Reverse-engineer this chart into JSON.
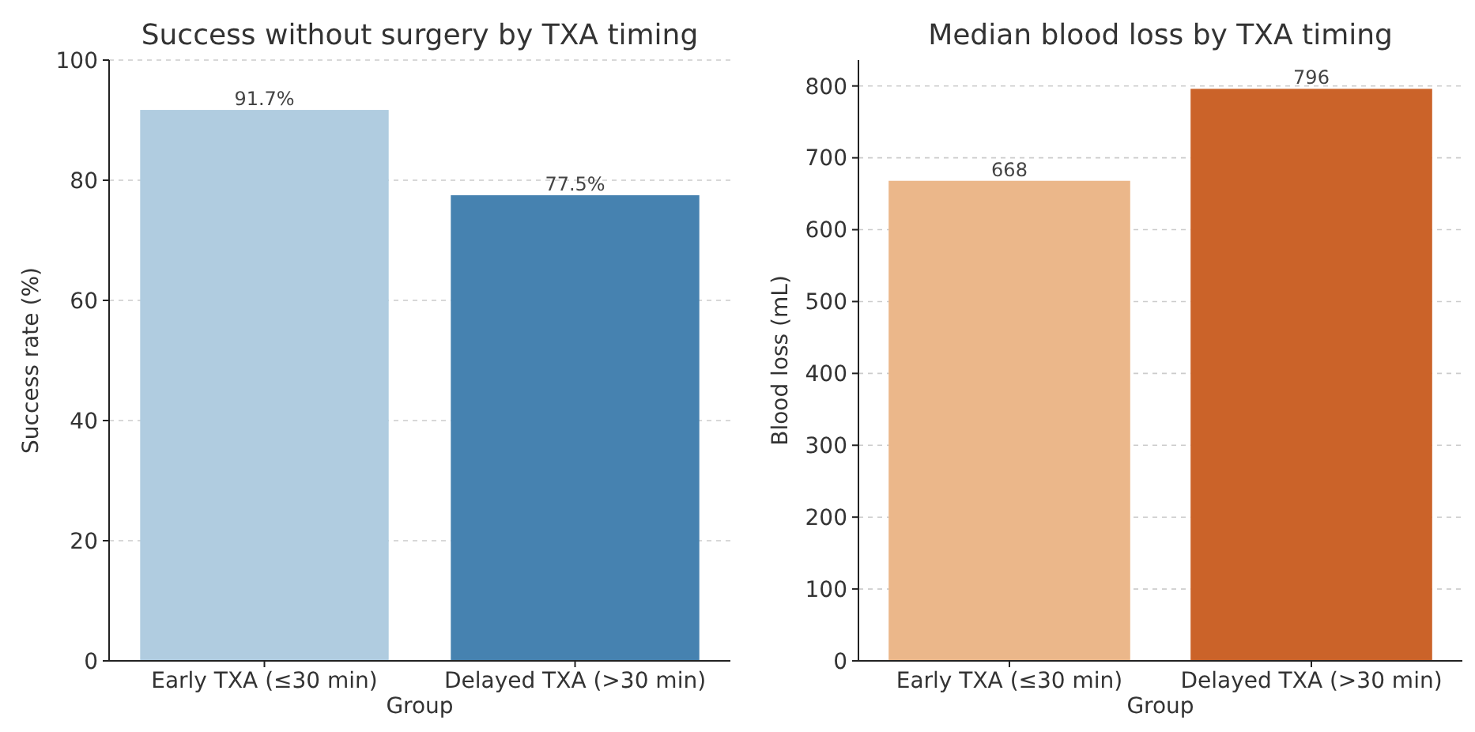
{
  "chart_data": [
    {
      "type": "bar",
      "title": "Success without surgery by TXA timing",
      "xlabel": "Group",
      "ylabel": "Success rate (%)",
      "categories": [
        "Early TXA (≤30 min)",
        "Delayed TXA (>30 min)"
      ],
      "values": [
        91.7,
        77.5
      ],
      "colors": [
        "#b0cce0",
        "#4682b0"
      ],
      "value_labels": [
        "91.7%",
        "77.5%"
      ],
      "ylim": [
        0,
        100
      ],
      "yticks": [
        0,
        20,
        40,
        60,
        80,
        100
      ],
      "grid": "y"
    },
    {
      "type": "bar",
      "title": "Median blood loss by TXA timing",
      "xlabel": "Group",
      "ylabel": "Blood loss (mL)",
      "categories": [
        "Early TXA (≤30 min)",
        "Delayed TXA (>30 min)"
      ],
      "values": [
        668,
        796
      ],
      "colors": [
        "#ebb78a",
        "#cb6329"
      ],
      "data_labels": true,
      "ylim": [
        0,
        836
      ],
      "yticks": [
        0,
        100,
        200,
        300,
        400,
        500,
        600,
        700,
        800
      ],
      "grid": "y"
    }
  ]
}
